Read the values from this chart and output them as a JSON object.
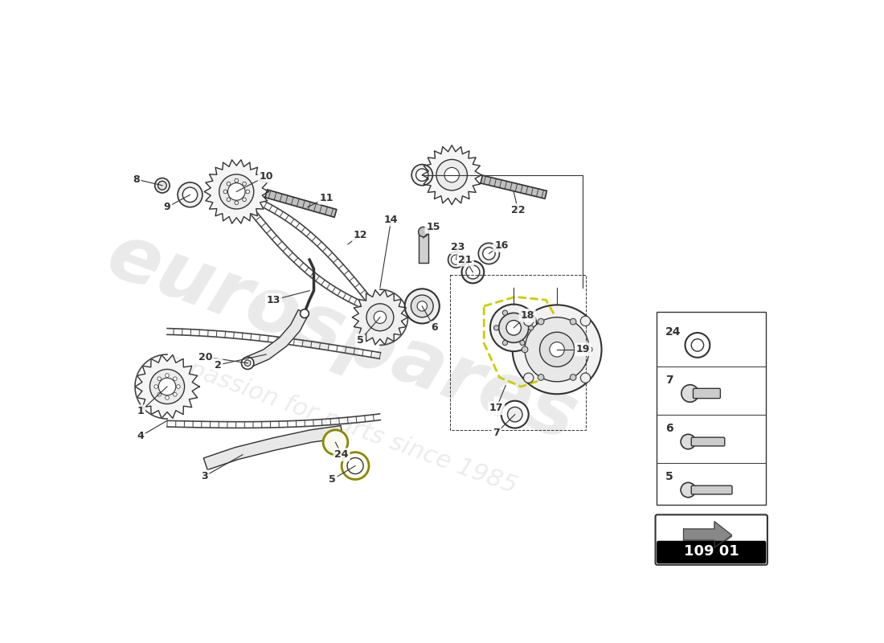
{
  "bg_color": "#ffffff",
  "watermark1": "eurospares",
  "watermark2": "a passion for parts since 1985",
  "part_number": "109 01",
  "lc": "#333333",
  "dgray": "#555555",
  "lgray": "#aaaaaa",
  "accent": "#d4d400"
}
